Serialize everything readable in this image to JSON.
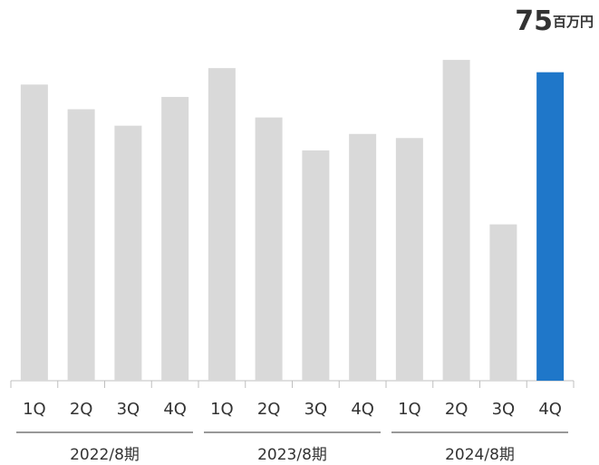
{
  "chart_data": {
    "type": "bar",
    "categories": [
      "1Q",
      "2Q",
      "3Q",
      "4Q",
      "1Q",
      "2Q",
      "3Q",
      "4Q",
      "1Q",
      "2Q",
      "3Q",
      "4Q"
    ],
    "groups": [
      {
        "name": "2022/8期",
        "size": 4
      },
      {
        "name": "2023/8期",
        "size": 4
      },
      {
        "name": "2024/8期",
        "size": 4
      }
    ],
    "unit": "百万円",
    "series": [
      {
        "values": [
          72,
          66,
          62,
          69,
          76,
          64,
          56,
          60,
          59,
          78,
          38,
          75
        ],
        "colors": [
          "#d9d9d9",
          "#d9d9d9",
          "#d9d9d9",
          "#d9d9d9",
          "#d9d9d9",
          "#d9d9d9",
          "#d9d9d9",
          "#d9d9d9",
          "#d9d9d9",
          "#d9d9d9",
          "#d9d9d9",
          "#1f77c9"
        ]
      }
    ],
    "highlight_color": "#1f77c9",
    "ylim": [
      0,
      80
    ]
  }
}
